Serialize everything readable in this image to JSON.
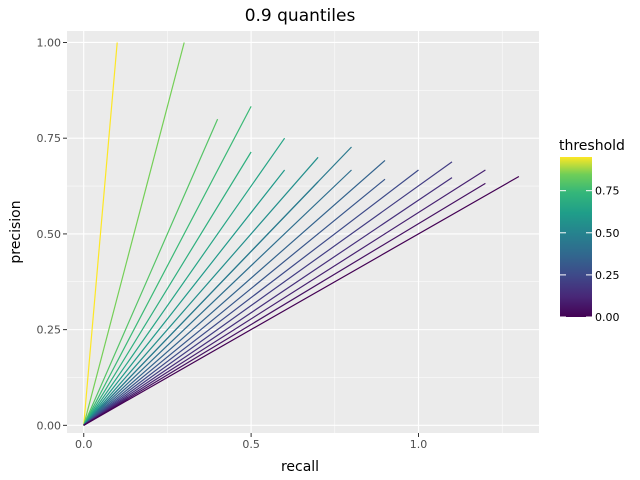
{
  "chart_data": {
    "type": "line",
    "title": "0.9 quantiles",
    "xlabel": "recall",
    "ylabel": "precision",
    "xlim": [
      -0.05,
      1.36
    ],
    "ylim": [
      -0.02,
      1.03
    ],
    "x_ticks": [
      0.0,
      0.5,
      1.0
    ],
    "x_tick_labels": [
      "0.0",
      "0.5",
      "1.0"
    ],
    "y_ticks": [
      0.0,
      0.25,
      0.5,
      0.75,
      1.0
    ],
    "y_tick_labels": [
      "0.00",
      "0.25",
      "0.50",
      "0.75",
      "1.00"
    ],
    "grid": true,
    "legend": {
      "title": "threshold",
      "position": "right",
      "type": "colorbar",
      "range": [
        0,
        0.95
      ],
      "ticks": [
        0.0,
        0.25,
        0.5,
        0.75
      ],
      "tick_labels": [
        "0.00",
        "0.25",
        "0.50",
        "0.75"
      ]
    },
    "series": [
      {
        "threshold": 0.95,
        "x": [
          0,
          0.1
        ],
        "y": [
          0,
          1.0
        ]
      },
      {
        "threshold": 0.85,
        "x": [
          0,
          0.3
        ],
        "y": [
          0,
          1.0
        ]
      },
      {
        "threshold": 0.8,
        "x": [
          0,
          0.4
        ],
        "y": [
          0,
          0.8
        ]
      },
      {
        "threshold": 0.75,
        "x": [
          0,
          0.5
        ],
        "y": [
          0,
          0.833
        ]
      },
      {
        "threshold": 0.7,
        "x": [
          0,
          0.5
        ],
        "y": [
          0,
          0.714
        ]
      },
      {
        "threshold": 0.65,
        "x": [
          0,
          0.6
        ],
        "y": [
          0,
          0.75
        ]
      },
      {
        "threshold": 0.6,
        "x": [
          0,
          0.6
        ],
        "y": [
          0,
          0.667
        ]
      },
      {
        "threshold": 0.55,
        "x": [
          0,
          0.7
        ],
        "y": [
          0,
          0.7
        ]
      },
      {
        "threshold": 0.5,
        "x": [
          0,
          0.7
        ],
        "y": [
          0,
          0.636
        ]
      },
      {
        "threshold": 0.45,
        "x": [
          0,
          0.8
        ],
        "y": [
          0,
          0.727
        ]
      },
      {
        "threshold": 0.4,
        "x": [
          0,
          0.8
        ],
        "y": [
          0,
          0.667
        ]
      },
      {
        "threshold": 0.35,
        "x": [
          0,
          0.9
        ],
        "y": [
          0,
          0.692
        ]
      },
      {
        "threshold": 0.3,
        "x": [
          0,
          0.9
        ],
        "y": [
          0,
          0.643
        ]
      },
      {
        "threshold": 0.25,
        "x": [
          0,
          1.0
        ],
        "y": [
          0,
          0.667
        ]
      },
      {
        "threshold": 0.2,
        "x": [
          0,
          1.1
        ],
        "y": [
          0,
          0.688
        ]
      },
      {
        "threshold": 0.15,
        "x": [
          0,
          1.1
        ],
        "y": [
          0,
          0.647
        ]
      },
      {
        "threshold": 0.1,
        "x": [
          0,
          1.2
        ],
        "y": [
          0,
          0.667
        ]
      },
      {
        "threshold": 0.05,
        "x": [
          0,
          1.2
        ],
        "y": [
          0,
          0.632
        ]
      },
      {
        "threshold": 0.0,
        "x": [
          0,
          1.3
        ],
        "y": [
          0,
          0.65
        ]
      }
    ]
  }
}
